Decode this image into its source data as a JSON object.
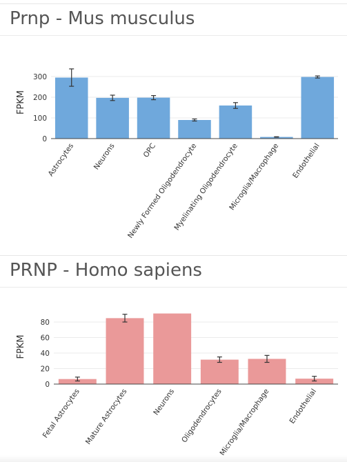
{
  "panels": [
    {
      "title": "Prnp - Mus musculus"
    },
    {
      "title": "PRNP - Homo sapiens"
    }
  ],
  "chart_data": [
    {
      "type": "bar",
      "title": "Prnp - Mus musculus",
      "xlabel": "",
      "ylabel": "FPKM",
      "categories": [
        "Astrocytes",
        "Neurons",
        "OPC",
        "Newly Formed Oligodendrocyte",
        "Myelinating Oligodendrocyte",
        "Microglia/Macrophage",
        "Endothelial"
      ],
      "values": [
        295,
        197,
        198,
        90,
        160,
        8,
        298
      ],
      "error": [
        42,
        13,
        10,
        5,
        14,
        1,
        5
      ],
      "ylim": [
        0,
        350
      ],
      "yticks": [
        0,
        100,
        200,
        300
      ],
      "grid": true,
      "color": "#6fa8dc"
    },
    {
      "type": "bar",
      "title": "PRNP - Homo sapiens",
      "xlabel": "",
      "ylabel": "FPKM",
      "categories": [
        "Fetal Astrocytes",
        "Mature Astrocytes",
        "Neurons",
        "Oligodendrocytes",
        "Microglia/Macrophage",
        "Endothelial"
      ],
      "values": [
        6.5,
        85,
        91,
        31.5,
        32.5,
        7
      ],
      "error": [
        2.5,
        5,
        0,
        3.5,
        4.5,
        3
      ],
      "ylim": [
        0,
        96
      ],
      "yticks": [
        0,
        20,
        40,
        60,
        80
      ],
      "grid": true,
      "color": "#ea9999"
    }
  ]
}
